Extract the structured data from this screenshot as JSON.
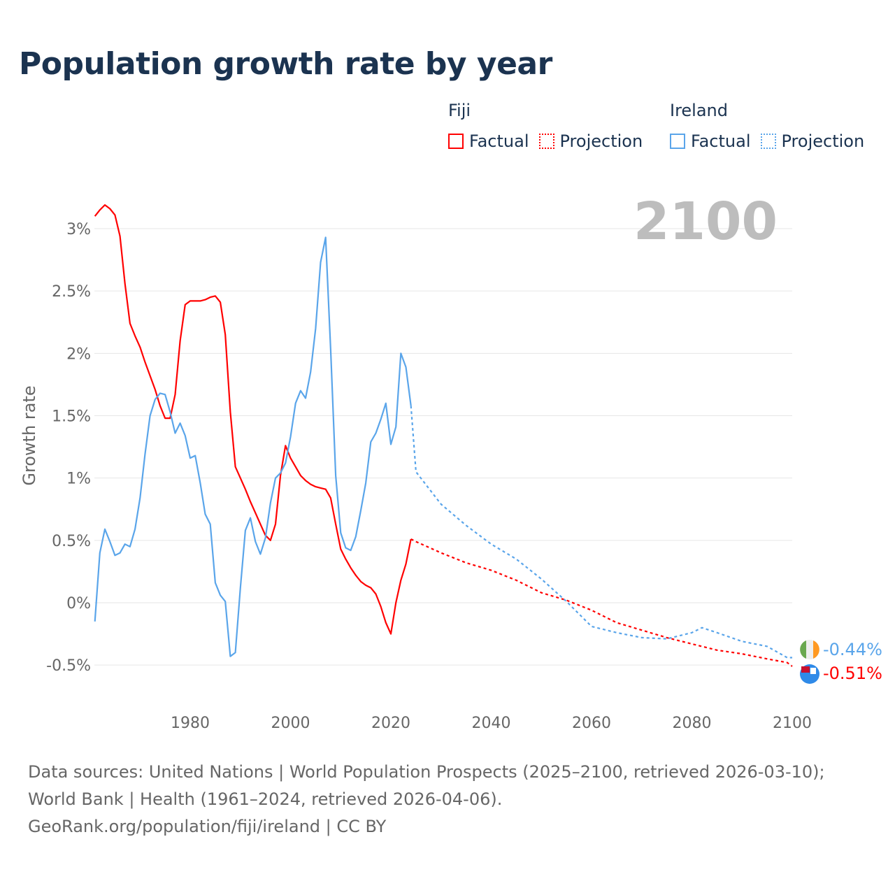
{
  "title": "Population growth rate by year",
  "year_badge": "2100",
  "legend": {
    "groups": [
      {
        "name": "Fiji",
        "factual": "Factual",
        "projection": "Projection",
        "color": "#ff0000"
      },
      {
        "name": "Ireland",
        "factual": "Factual",
        "projection": "Projection",
        "color": "#5aa5ea"
      }
    ]
  },
  "chart_data": {
    "type": "line",
    "title": "Population growth rate by year",
    "xlabel": "",
    "ylabel": "Growth rate",
    "xlim": [
      1961,
      2100
    ],
    "ylim": [
      -0.7,
      3.3
    ],
    "x_ticks": [
      1980,
      2000,
      2020,
      2040,
      2060,
      2080,
      2100
    ],
    "y_ticks": [
      -0.5,
      0,
      0.5,
      1,
      1.5,
      2,
      2.5,
      3
    ],
    "y_tick_labels": [
      "-0.5%",
      "0%",
      "0.5%",
      "1%",
      "1.5%",
      "2%",
      "2.5%",
      "3%"
    ],
    "grid": true,
    "series": [
      {
        "name": "Fiji Factual",
        "color": "#ff0000",
        "style": "solid",
        "x": [
          1961,
          1962,
          1963,
          1964,
          1965,
          1966,
          1967,
          1968,
          1969,
          1970,
          1971,
          1972,
          1973,
          1974,
          1975,
          1976,
          1977,
          1978,
          1979,
          1980,
          1981,
          1982,
          1983,
          1984,
          1985,
          1986,
          1987,
          1988,
          1989,
          1990,
          1991,
          1992,
          1993,
          1994,
          1995,
          1996,
          1997,
          1998,
          1999,
          2000,
          2001,
          2002,
          2003,
          2004,
          2005,
          2006,
          2007,
          2008,
          2009,
          2010,
          2011,
          2012,
          2013,
          2014,
          2015,
          2016,
          2017,
          2018,
          2019,
          2020,
          2021,
          2022,
          2023,
          2024
        ],
        "y": [
          3.1,
          3.15,
          3.19,
          3.16,
          3.11,
          2.94,
          2.56,
          2.24,
          2.14,
          2.05,
          1.93,
          1.82,
          1.71,
          1.58,
          1.48,
          1.48,
          1.67,
          2.1,
          2.39,
          2.42,
          2.42,
          2.42,
          2.43,
          2.45,
          2.46,
          2.41,
          2.15,
          1.53,
          1.09,
          1.0,
          0.91,
          0.81,
          0.72,
          0.63,
          0.54,
          0.5,
          0.63,
          1.02,
          1.26,
          1.16,
          1.09,
          1.02,
          0.98,
          0.95,
          0.93,
          0.92,
          0.91,
          0.84,
          0.63,
          0.43,
          0.35,
          0.28,
          0.22,
          0.17,
          0.14,
          0.12,
          0.07,
          -0.03,
          -0.16,
          -0.25,
          0.0,
          0.18,
          0.31,
          0.51
        ]
      },
      {
        "name": "Fiji Projection",
        "color": "#ff0000",
        "style": "dotted",
        "x": [
          2024,
          2025,
          2030,
          2035,
          2040,
          2045,
          2050,
          2055,
          2060,
          2065,
          2070,
          2075,
          2080,
          2085,
          2090,
          2095,
          2099,
          2100
        ],
        "y": [
          0.51,
          0.49,
          0.4,
          0.32,
          0.26,
          0.18,
          0.08,
          0.02,
          -0.06,
          -0.16,
          -0.22,
          -0.28,
          -0.33,
          -0.38,
          -0.41,
          -0.45,
          -0.48,
          -0.51
        ]
      },
      {
        "name": "Ireland Factual",
        "color": "#5aa5ea",
        "style": "solid",
        "x": [
          1961,
          1962,
          1963,
          1964,
          1965,
          1966,
          1967,
          1968,
          1969,
          1970,
          1971,
          1972,
          1973,
          1974,
          1975,
          1976,
          1977,
          1978,
          1979,
          1980,
          1981,
          1982,
          1983,
          1984,
          1985,
          1986,
          1987,
          1988,
          1989,
          1990,
          1991,
          1992,
          1993,
          1994,
          1995,
          1996,
          1997,
          1998,
          1999,
          2000,
          2001,
          2002,
          2003,
          2004,
          2005,
          2006,
          2007,
          2008,
          2009,
          2010,
          2011,
          2012,
          2013,
          2014,
          2015,
          2016,
          2017,
          2018,
          2019,
          2020,
          2021,
          2022,
          2023,
          2024
        ],
        "y": [
          -0.15,
          0.4,
          0.59,
          0.49,
          0.38,
          0.4,
          0.47,
          0.45,
          0.59,
          0.84,
          1.19,
          1.5,
          1.63,
          1.68,
          1.67,
          1.53,
          1.36,
          1.44,
          1.34,
          1.16,
          1.18,
          0.96,
          0.71,
          0.63,
          0.16,
          0.06,
          0.01,
          -0.43,
          -0.4,
          0.12,
          0.58,
          0.68,
          0.49,
          0.39,
          0.52,
          0.8,
          1.0,
          1.04,
          1.12,
          1.33,
          1.6,
          1.7,
          1.64,
          1.85,
          2.2,
          2.73,
          2.93,
          2.03,
          1.02,
          0.56,
          0.44,
          0.42,
          0.53,
          0.74,
          0.96,
          1.29,
          1.36,
          1.47,
          1.6,
          1.27,
          1.41,
          2.0,
          1.89,
          1.58
        ]
      },
      {
        "name": "Ireland Projection",
        "color": "#5aa5ea",
        "style": "dotted",
        "x": [
          2024,
          2025,
          2030,
          2035,
          2040,
          2045,
          2050,
          2055,
          2060,
          2065,
          2070,
          2075,
          2080,
          2082,
          2085,
          2090,
          2095,
          2099,
          2100
        ],
        "y": [
          1.58,
          1.05,
          0.79,
          0.62,
          0.47,
          0.35,
          0.19,
          0.01,
          -0.19,
          -0.24,
          -0.28,
          -0.29,
          -0.24,
          -0.2,
          -0.24,
          -0.31,
          -0.35,
          -0.44,
          -0.44
        ]
      }
    ],
    "end_labels": [
      {
        "country": "Ireland",
        "value": "-0.44%",
        "color": "#5aa5ea"
      },
      {
        "country": "Fiji",
        "value": "-0.51%",
        "color": "#ff0000"
      }
    ]
  },
  "footer": {
    "sources": "Data sources: United Nations | World Population Prospects (2025–2100, retrieved 2026-03-10); World Bank | Health (1961–2024, retrieved 2026-04-06).",
    "attribution": "GeoRank.org/population/fiji/ireland | CC BY"
  }
}
